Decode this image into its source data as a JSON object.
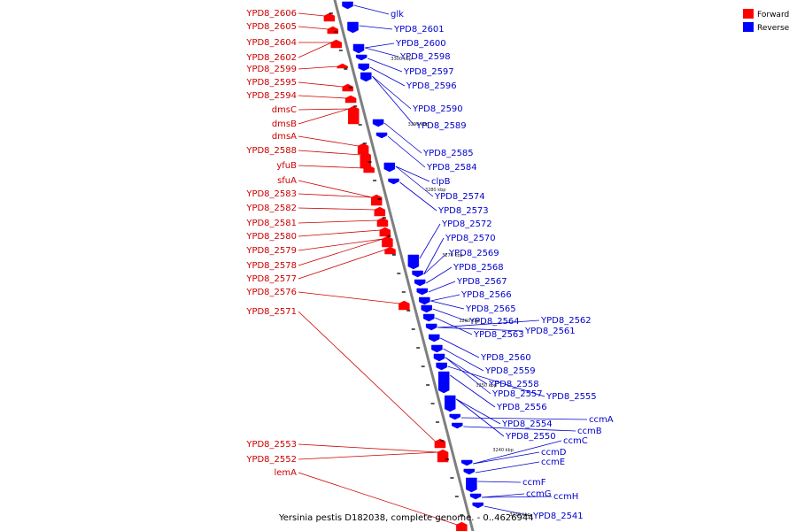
{
  "caption": "Yersinia pestis D182038, complete genome. - 0..4626944",
  "legend": [
    {
      "name": "Forward",
      "color": "#ff0000"
    },
    {
      "name": "Reverse",
      "color": "#0000ff"
    }
  ],
  "colors": {
    "forward_fill": "#ff0000",
    "reverse_fill": "#0000ff",
    "forward_label": "#cc0000",
    "reverse_label": "#0000cc",
    "backbone": "#7f7f7f"
  },
  "ticks": [
    "3300 kbp",
    "3290 kbp",
    "3280 kbp",
    "3270 kbp",
    "3260 kbp",
    "3250 kbp",
    "3240 kbp",
    "3230 kbp"
  ],
  "forward_labels": [
    "YPD8_2606",
    "YPD8_2605",
    "YPD8_2604",
    "YPD8_2602",
    "YPD8_2599",
    "YPD8_2595",
    "YPD8_2594",
    "dmsC",
    "dmsB",
    "dmsA",
    "YPD8_2588",
    "yfuB",
    "sfuA",
    "YPD8_2583",
    "YPD8_2582",
    "YPD8_2581",
    "YPD8_2580",
    "YPD8_2579",
    "YPD8_2578",
    "YPD8_2577",
    "YPD8_2576",
    "YPD8_2571",
    "YPD8_2553",
    "YPD8_2552",
    "lemA"
  ],
  "reverse_labels": [
    "glk",
    "YPD8_2601",
    "YPD8_2600",
    "YPD8_2598",
    "YPD8_2597",
    "YPD8_2596",
    "YPD8_2590",
    "YPD8_2589",
    "YPD8_2585",
    "YPD8_2584",
    "clpB",
    "YPD8_2574",
    "YPD8_2573",
    "YPD8_2572",
    "YPD8_2570",
    "YPD8_2569",
    "YPD8_2568",
    "YPD8_2567",
    "YPD8_2566",
    "YPD8_2565",
    "YPD8_2564",
    "YPD8_2563",
    "YPD8_2562",
    "YPD8_2561",
    "YPD8_2560",
    "YPD8_2559",
    "YPD8_2558",
    "YPD8_2557",
    "YPD8_2555",
    "YPD8_2556",
    "YPD8_2554",
    "YPD8_2550",
    "ccmA",
    "ccmB",
    "ccmC",
    "ccmD",
    "ccmE",
    "ccmF",
    "ccmG",
    "ccmH",
    "YPD8_2541"
  ]
}
